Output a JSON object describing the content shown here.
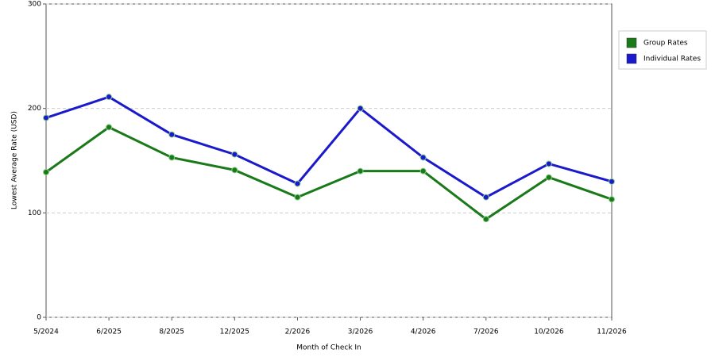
{
  "chart_data": {
    "type": "line",
    "x_label": "Month of Check In",
    "y_label": "Lowest Average Rate (USD)",
    "categories": [
      "5/2024",
      "6/2025",
      "8/2025",
      "12/2025",
      "2/2026",
      "3/2026",
      "4/2026",
      "7/2026",
      "10/2026",
      "11/2026"
    ],
    "series": [
      {
        "name": "Group Rates",
        "color": "#1a7a1a",
        "values": [
          139,
          182,
          153,
          141,
          115,
          140,
          140,
          94,
          134,
          113
        ]
      },
      {
        "name": "Individual Rates",
        "color": "#1a1acc",
        "values": [
          191,
          211,
          175,
          156,
          128,
          200,
          153,
          115,
          147,
          130
        ]
      }
    ],
    "ylim": [
      0,
      300
    ],
    "yticks": [
      0,
      100,
      200,
      300
    ],
    "grid": true,
    "legend": "right"
  }
}
